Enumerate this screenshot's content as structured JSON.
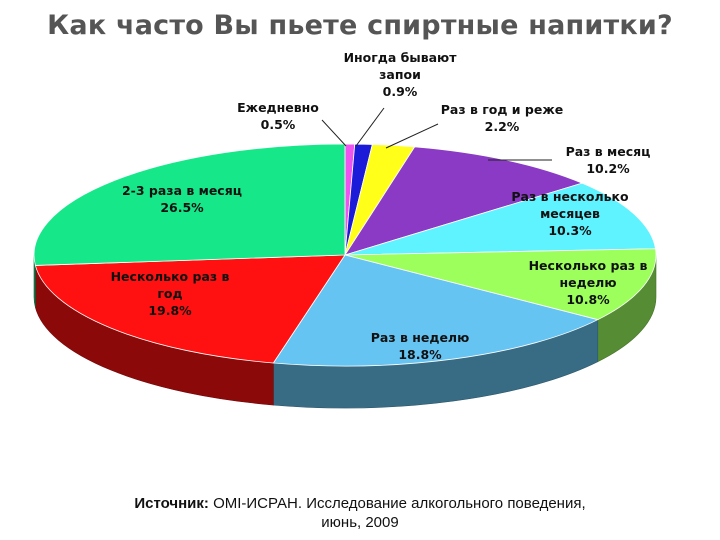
{
  "chart_data": {
    "type": "pie",
    "title": "Как часто Вы пьете спиртные напитки?",
    "style": "3d",
    "slices": [
      {
        "label": "Ежедневно",
        "value_label": "0.5%",
        "value": 0.5,
        "color": "#ee55ee"
      },
      {
        "label": "Иногда бывают запои",
        "value_label": "0.9%",
        "value": 0.9,
        "color": "#1c1cd8"
      },
      {
        "label": "Раз в год и реже",
        "value_label": "2.2%",
        "value": 2.2,
        "color": "#ffff1a"
      },
      {
        "label": "Раз в месяц",
        "value_label": "10.2%",
        "value": 10.2,
        "color": "#8a3ac4"
      },
      {
        "label": "Раз в несколько месяцев",
        "value_label": "10.3%",
        "value": 10.3,
        "color": "#5ff2ff"
      },
      {
        "label": "Несколько раз в неделю",
        "value_label": "10.8%",
        "value": 10.8,
        "color": "#9cff5c"
      },
      {
        "label": "Раз в неделю",
        "value_label": "18.8%",
        "value": 18.8,
        "color": "#66c4f2"
      },
      {
        "label": "Несколько раз в год",
        "value_label": "19.8%",
        "value": 19.8,
        "color": "#ff1111"
      },
      {
        "label": "2-3 раза в месяц",
        "value_label": "26.5%",
        "value": 26.5,
        "color": "#16e88a"
      }
    ]
  },
  "source": {
    "prefix": "Источник:",
    "text": "ОМІ-ИСРАН. Исследование алкогольного поведения,",
    "date": "июнь, 2009"
  }
}
